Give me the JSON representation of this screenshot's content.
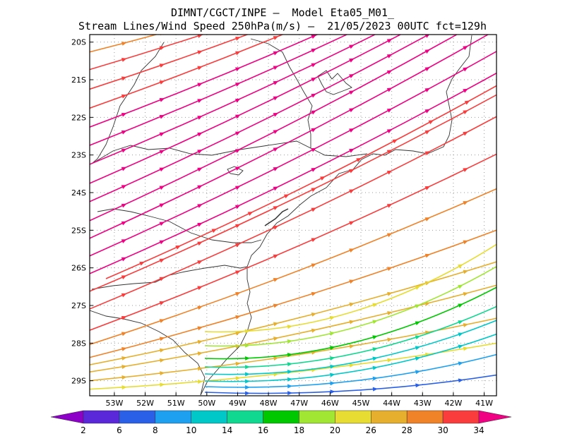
{
  "header": {
    "line1": "DIMNT/CGCT/INPE –  Model Eta05_M01_",
    "line2": "Stream Lines/Wind Speed 250hPa(m/s) –  21/05/2023 00UTC fct=129h"
  },
  "map": {
    "lon_range": [
      -53.8,
      -40.6
    ],
    "lat_range": [
      -29.4,
      -19.8
    ],
    "lat_ticks": [
      {
        "value": -20,
        "label": "20S"
      },
      {
        "value": -21,
        "label": "21S"
      },
      {
        "value": -22,
        "label": "22S"
      },
      {
        "value": -23,
        "label": "23S"
      },
      {
        "value": -24,
        "label": "24S"
      },
      {
        "value": -25,
        "label": "25S"
      },
      {
        "value": -26,
        "label": "26S"
      },
      {
        "value": -27,
        "label": "27S"
      },
      {
        "value": -28,
        "label": "28S"
      },
      {
        "value": -29,
        "label": "29S"
      }
    ],
    "lon_ticks": [
      {
        "value": -53,
        "label": "53W"
      },
      {
        "value": -52,
        "label": "52W"
      },
      {
        "value": -51,
        "label": "51W"
      },
      {
        "value": -50,
        "label": "50W"
      },
      {
        "value": -49,
        "label": "49W"
      },
      {
        "value": -48,
        "label": "48W"
      },
      {
        "value": -47,
        "label": "47W"
      },
      {
        "value": -46,
        "label": "46W"
      },
      {
        "value": -45,
        "label": "45W"
      },
      {
        "value": -44,
        "label": "44W"
      },
      {
        "value": -43,
        "label": "43W"
      },
      {
        "value": -42,
        "label": "42W"
      },
      {
        "value": -41,
        "label": "41W"
      }
    ],
    "streamlines": "wind speed streamlines flowing from southwest to northeast"
  },
  "colorbar": {
    "labels": [
      "2",
      "6",
      "8",
      "10",
      "14",
      "16",
      "18",
      "20",
      "26",
      "28",
      "30",
      "34"
    ],
    "colors": [
      "#8c00c8",
      "#5a28d8",
      "#2a60e8",
      "#1ea0f0",
      "#00c8c8",
      "#10d890",
      "#00c800",
      "#a0e632",
      "#e6dc32",
      "#e6af2d",
      "#f08228",
      "#fa3c3c",
      "#f00082"
    ]
  }
}
